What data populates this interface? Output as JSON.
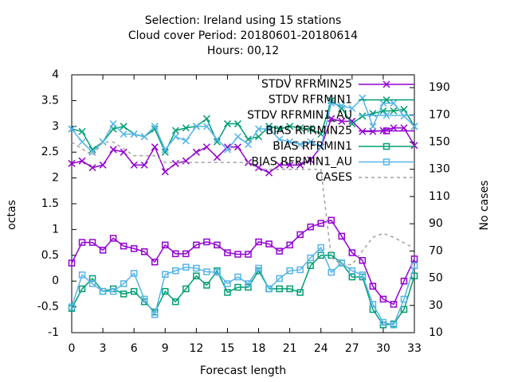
{
  "chart_data": {
    "type": "line",
    "title": [
      "Selection: Ireland using    15 stations",
      "Cloud cover   Period: 20180601-20180614",
      "Hours:  00,12"
    ],
    "xlabel": "Forecast length",
    "ylabel": "octas",
    "y2label": "No cases",
    "x": [
      0,
      1,
      2,
      3,
      4,
      5,
      6,
      7,
      8,
      9,
      10,
      11,
      12,
      13,
      14,
      15,
      16,
      17,
      18,
      19,
      20,
      21,
      22,
      23,
      24,
      25,
      26,
      27,
      28,
      29,
      30,
      31,
      32,
      33
    ],
    "xlim": [
      0,
      33
    ],
    "xticks": [
      0,
      3,
      6,
      9,
      12,
      15,
      18,
      21,
      24,
      27,
      30,
      33
    ],
    "ylim": [
      -1,
      4
    ],
    "yticks": [
      -1,
      -0.5,
      0,
      0.5,
      1,
      1.5,
      2,
      2.5,
      3,
      3.5,
      4
    ],
    "y2lim": [
      10,
      199.4
    ],
    "y2ticks": [
      10,
      30,
      50,
      70,
      90,
      110,
      130,
      150,
      170,
      190
    ],
    "legend": "top-right",
    "series": [
      {
        "name": "STDV RFRMIN25",
        "color": "#9400d3",
        "marker": "x",
        "values": [
          2.28,
          2.33,
          2.2,
          2.25,
          2.55,
          2.5,
          2.25,
          2.25,
          2.6,
          2.12,
          2.28,
          2.33,
          2.5,
          2.6,
          2.4,
          2.6,
          2.6,
          2.3,
          2.2,
          2.1,
          2.25,
          2.25,
          2.25,
          2.35,
          2.6,
          3.15,
          3.1,
          3.1,
          2.9,
          2.9,
          2.92,
          2.97,
          2.97,
          2.63
        ]
      },
      {
        "name": "STDV RFRMIN1",
        "color": "#009e73",
        "marker": "x",
        "values": [
          2.95,
          2.9,
          2.55,
          2.7,
          2.95,
          3.0,
          2.85,
          2.8,
          2.95,
          2.5,
          2.92,
          2.97,
          3.0,
          3.15,
          2.7,
          3.05,
          3.05,
          2.75,
          2.8,
          3.0,
          2.95,
          3.0,
          2.97,
          2.95,
          2.85,
          3.5,
          3.35,
          3.05,
          3.2,
          3.25,
          3.3,
          3.3,
          3.33,
          3.0
        ]
      },
      {
        "name": "STDV RFRMIN1_AU",
        "color": "#56b4e9",
        "marker": "x",
        "values": [
          2.95,
          2.7,
          2.5,
          2.7,
          3.05,
          2.85,
          2.85,
          2.8,
          3.0,
          2.55,
          2.8,
          2.72,
          3.0,
          3.0,
          2.75,
          2.55,
          2.8,
          2.65,
          2.95,
          2.95,
          2.75,
          2.7,
          2.65,
          2.7,
          2.6,
          3.45,
          3.4,
          3.35,
          3.55,
          3.0,
          3.45,
          3.45,
          3.2,
          3.0
        ]
      },
      {
        "name": "BIAS RFRMIN25",
        "color": "#9400d3",
        "marker": "square",
        "values": [
          0.35,
          0.75,
          0.75,
          0.6,
          0.83,
          0.68,
          0.63,
          0.57,
          0.37,
          0.7,
          0.53,
          0.53,
          0.7,
          0.76,
          0.7,
          0.55,
          0.52,
          0.52,
          0.76,
          0.72,
          0.58,
          0.7,
          0.9,
          1.05,
          1.12,
          1.18,
          0.87,
          0.55,
          0.4,
          -0.1,
          -0.35,
          -0.45,
          0.0,
          0.43
        ]
      },
      {
        "name": "BIAS RFRMIN1",
        "color": "#009e73",
        "marker": "square",
        "values": [
          -0.53,
          -0.15,
          0.05,
          -0.2,
          -0.15,
          -0.25,
          -0.2,
          -0.4,
          -0.6,
          -0.2,
          -0.4,
          -0.15,
          0.1,
          -0.08,
          0.2,
          -0.22,
          -0.12,
          -0.12,
          0.2,
          -0.15,
          -0.15,
          -0.15,
          -0.22,
          0.3,
          0.5,
          0.5,
          0.35,
          0.08,
          0.08,
          -0.55,
          -0.85,
          -0.83,
          -0.55,
          0.1
        ]
      },
      {
        "name": "BIAS RFRMIN1_AU",
        "color": "#56b4e9",
        "marker": "square",
        "values": [
          -0.5,
          0.12,
          -0.05,
          -0.2,
          -0.2,
          -0.05,
          0.15,
          -0.35,
          -0.65,
          0.13,
          0.2,
          0.27,
          0.25,
          0.18,
          0.17,
          -0.05,
          0.08,
          -0.05,
          0.25,
          -0.15,
          0.05,
          0.2,
          0.22,
          0.45,
          0.65,
          0.17,
          0.35,
          0.2,
          0.12,
          -0.45,
          -0.8,
          -0.85,
          -0.35,
          0.3
        ]
      },
      {
        "name": "CASES",
        "color": "#a0a0a0",
        "marker": "none",
        "dashed": true,
        "axis": "y2",
        "values": [
          150,
          145,
          140,
          150,
          150,
          145,
          140,
          140,
          140,
          135,
          135,
          135,
          135,
          135,
          135,
          135,
          135,
          135,
          130,
          130,
          130,
          130,
          130,
          130,
          130,
          65,
          60,
          60,
          70,
          80,
          83,
          80,
          76,
          72
        ]
      }
    ]
  }
}
